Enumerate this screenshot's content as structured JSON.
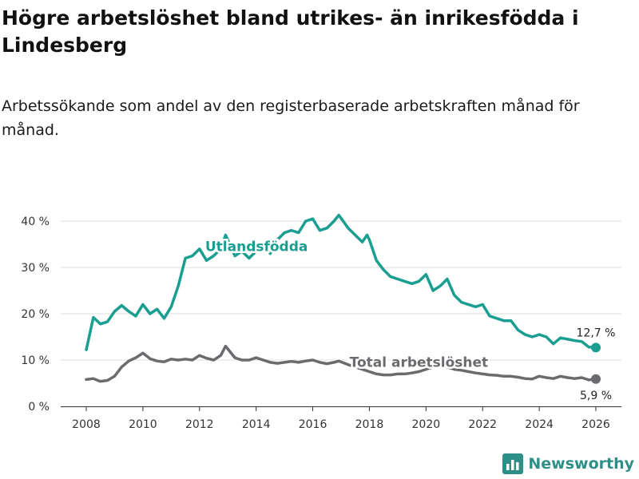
{
  "title": "Högre arbetslöshet bland utrikes- än inrikesfödda i Lindesberg",
  "subtitle": "Arbetssökande som andel av den registerbaserade arbetskraften månad för månad.",
  "brand": {
    "name": "Newsworthy",
    "icon": "bar-chart-logo-icon"
  },
  "colors": {
    "foreign_born": "#1a9e92",
    "total": "#6b6b6f",
    "grid": "#dddddd",
    "axis": "#333333",
    "brand": "#2d8f88"
  },
  "chart_data": {
    "type": "line",
    "title": "Högre arbetslöshet bland utrikes- än inrikesfödda i Lindesberg",
    "xlabel": "",
    "ylabel": "",
    "xlim": [
      2008,
      2026
    ],
    "ylim": [
      0,
      45
    ],
    "y_ticks": [
      0,
      10,
      20,
      30,
      40
    ],
    "y_tick_labels": [
      "0 %",
      "10 %",
      "20 %",
      "30 %",
      "40 %"
    ],
    "x_ticks": [
      2008,
      2010,
      2012,
      2014,
      2016,
      2018,
      2020,
      2022,
      2024,
      2026
    ],
    "x_tick_labels": [
      "2008",
      "2010",
      "2012",
      "2014",
      "2016",
      "2018",
      "2020",
      "2022",
      "2024",
      "2026"
    ],
    "grid": true,
    "series": [
      {
        "name": "Utlandsfödda",
        "end_label": "12,7 %",
        "x": [
          2008,
          2008.25,
          2008.5,
          2008.75,
          2009,
          2009.25,
          2009.5,
          2009.75,
          2010,
          2010.25,
          2010.5,
          2010.75,
          2011,
          2011.25,
          2011.5,
          2011.75,
          2012,
          2012.25,
          2012.5,
          2012.75,
          2012.92,
          2013.25,
          2013.5,
          2013.75,
          2014,
          2014.25,
          2014.5,
          2014.75,
          2015,
          2015.25,
          2015.5,
          2015.75,
          2016,
          2016.25,
          2016.5,
          2016.75,
          2016.92,
          2017.25,
          2017.5,
          2017.75,
          2017.92,
          2018,
          2018.25,
          2018.5,
          2018.75,
          2019,
          2019.25,
          2019.5,
          2019.75,
          2020,
          2020.25,
          2020.5,
          2020.75,
          2021,
          2021.25,
          2021.5,
          2021.75,
          2022,
          2022.25,
          2022.5,
          2022.75,
          2023,
          2023.25,
          2023.5,
          2023.75,
          2024,
          2024.25,
          2024.5,
          2024.75,
          2025,
          2025.25,
          2025.5,
          2025.75,
          2026
        ],
        "y": [
          12.2,
          19.2,
          17.8,
          18.3,
          20.5,
          21.8,
          20.5,
          19.5,
          22.0,
          20.0,
          21.0,
          19.0,
          21.5,
          26.0,
          32.0,
          32.5,
          34.0,
          31.5,
          32.5,
          34.0,
          37.0,
          32.5,
          33.5,
          32.0,
          33.5,
          35.0,
          33.0,
          36.0,
          37.5,
          38.0,
          37.5,
          40.0,
          40.5,
          38.0,
          38.5,
          40.0,
          41.3,
          38.5,
          37.0,
          35.5,
          37.0,
          36.0,
          31.5,
          29.5,
          28.0,
          27.5,
          27.0,
          26.5,
          27.0,
          28.5,
          25.0,
          26.0,
          27.5,
          24.0,
          22.5,
          22.0,
          21.5,
          22.0,
          19.5,
          19.0,
          18.5,
          18.5,
          16.5,
          15.5,
          15.0,
          15.5,
          15.0,
          13.5,
          14.8,
          14.5,
          14.2,
          14.0,
          12.8,
          12.7
        ]
      },
      {
        "name": "Total arbetslöshet",
        "end_label": "5,9 %",
        "x": [
          2008,
          2008.25,
          2008.5,
          2008.75,
          2009,
          2009.25,
          2009.5,
          2009.75,
          2010,
          2010.25,
          2010.5,
          2010.75,
          2011,
          2011.25,
          2011.5,
          2011.75,
          2012,
          2012.25,
          2012.5,
          2012.75,
          2012.92,
          2013.25,
          2013.5,
          2013.75,
          2014,
          2014.25,
          2014.5,
          2014.75,
          2015,
          2015.25,
          2015.5,
          2015.75,
          2016,
          2016.25,
          2016.5,
          2016.75,
          2016.92,
          2017.25,
          2017.5,
          2017.75,
          2018,
          2018.25,
          2018.5,
          2018.75,
          2019,
          2019.25,
          2019.5,
          2019.75,
          2020,
          2020.25,
          2020.5,
          2020.75,
          2021,
          2021.25,
          2021.5,
          2021.75,
          2022,
          2022.25,
          2022.5,
          2022.75,
          2023,
          2023.25,
          2023.5,
          2023.75,
          2024,
          2024.25,
          2024.5,
          2024.75,
          2025,
          2025.25,
          2025.5,
          2025.75,
          2026
        ],
        "y": [
          5.8,
          6.0,
          5.4,
          5.6,
          6.5,
          8.5,
          9.8,
          10.5,
          11.5,
          10.3,
          9.8,
          9.6,
          10.2,
          10.0,
          10.2,
          10.0,
          11.0,
          10.4,
          10.0,
          11.0,
          13.0,
          10.5,
          10.0,
          10.0,
          10.5,
          10.0,
          9.5,
          9.3,
          9.5,
          9.7,
          9.5,
          9.8,
          10.0,
          9.5,
          9.2,
          9.5,
          9.8,
          9.0,
          8.5,
          8.0,
          7.5,
          7.0,
          6.8,
          6.8,
          7.0,
          7.0,
          7.2,
          7.5,
          8.0,
          8.5,
          8.8,
          8.5,
          8.0,
          7.8,
          7.5,
          7.2,
          7.0,
          6.8,
          6.7,
          6.5,
          6.5,
          6.3,
          6.0,
          5.9,
          6.5,
          6.2,
          6.0,
          6.5,
          6.2,
          6.0,
          6.2,
          5.7,
          5.9
        ]
      }
    ]
  }
}
